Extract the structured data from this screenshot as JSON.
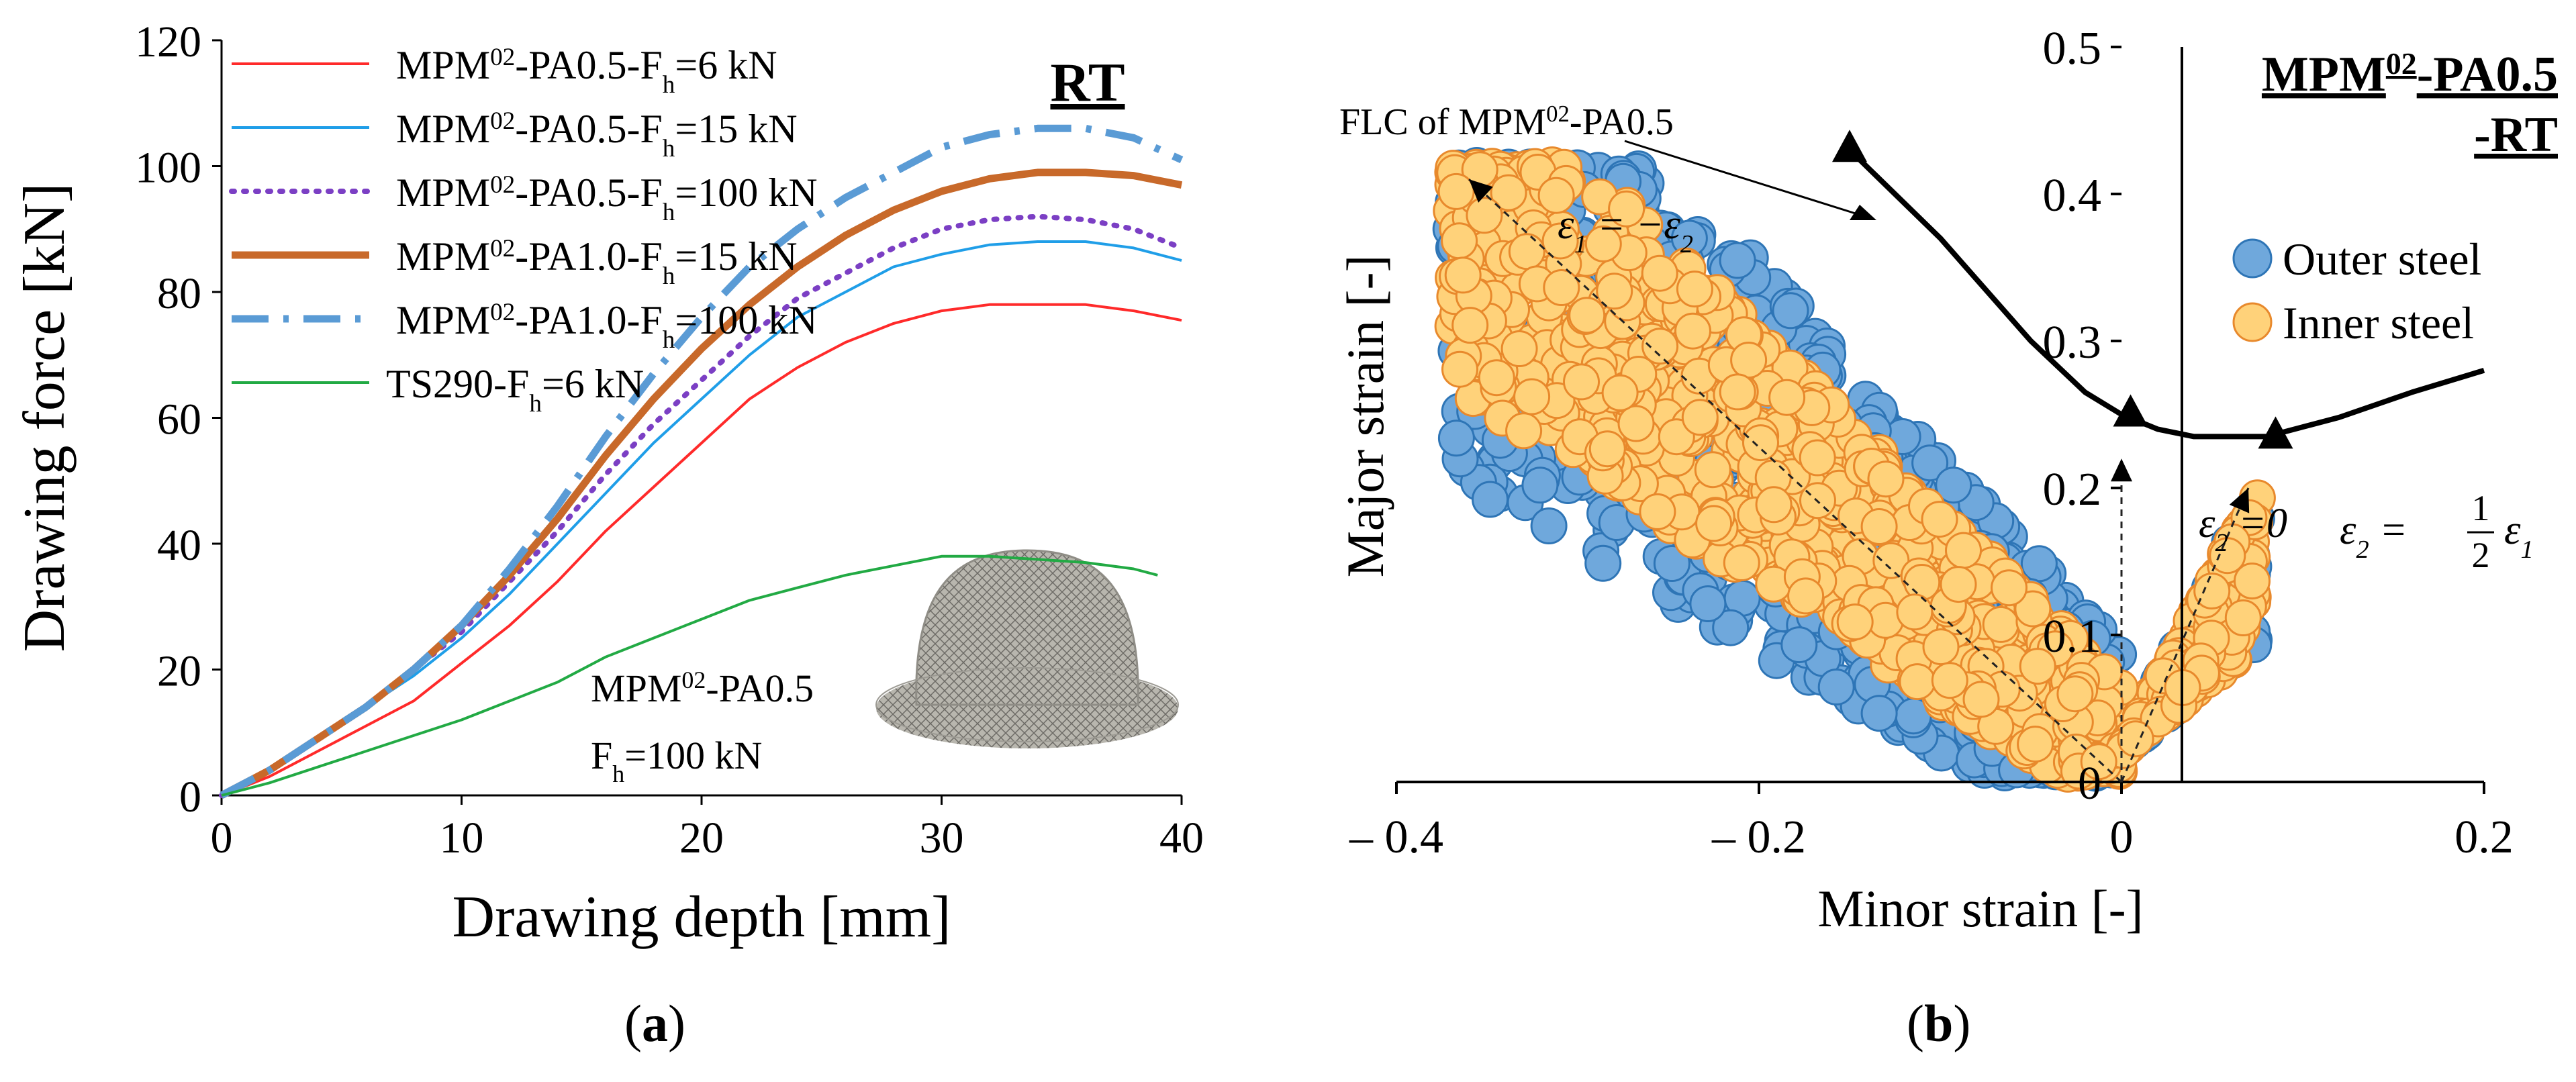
{
  "captions": {
    "a": "a",
    "b": "b"
  },
  "chart_data": [
    {
      "type": "line",
      "panel": "a",
      "title": "RT",
      "xlabel": "Drawing depth [mm]",
      "ylabel": "Drawing force [kN]",
      "xlim": [
        0,
        40
      ],
      "ylim": [
        0,
        120
      ],
      "xticks": [
        0,
        10,
        20,
        30,
        40
      ],
      "yticks": [
        0,
        20,
        40,
        60,
        80,
        100,
        120
      ],
      "legend_position": "top-left",
      "series": [
        {
          "name": "MPM02-PA0.5-Fh=6 kN",
          "label_parts": [
            "MPM",
            "02",
            "-PA0.5-F",
            "h",
            "=6 kN"
          ],
          "color": "#ff2a2a",
          "style": "solid",
          "x": [
            0,
            2,
            4,
            6,
            8,
            10,
            12,
            14,
            16,
            18,
            20,
            22,
            24,
            26,
            28,
            30,
            32,
            34,
            36,
            38,
            40
          ],
          "y": [
            0,
            3,
            7,
            11,
            15,
            21,
            27,
            34,
            42,
            49,
            56,
            63,
            68,
            72,
            75,
            77,
            78,
            78,
            78,
            77,
            75.5
          ]
        },
        {
          "name": "MPM02-PA0.5-Fh=15 kN",
          "label_parts": [
            "MPM",
            "02",
            "-PA0.5-F",
            "h",
            "=15 kN"
          ],
          "color": "#1f9ee8",
          "style": "solid",
          "x": [
            0,
            2,
            4,
            6,
            8,
            10,
            12,
            14,
            16,
            18,
            20,
            22,
            24,
            26,
            28,
            30,
            32,
            34,
            36,
            38,
            40
          ],
          "y": [
            0,
            4,
            9,
            14,
            19,
            25,
            32,
            40,
            48,
            56,
            63,
            70,
            76,
            80,
            84,
            86,
            87.5,
            88,
            88,
            87,
            85
          ]
        },
        {
          "name": "MPM02-PA0.5-Fh=100 kN",
          "label_parts": [
            "MPM",
            "02",
            "-PA0.5-F",
            "h",
            "=100 kN"
          ],
          "color": "#7b3fc4",
          "style": "dotted",
          "x": [
            0,
            2,
            4,
            6,
            8,
            10,
            12,
            14,
            16,
            18,
            20,
            22,
            24,
            26,
            28,
            30,
            32,
            34,
            36,
            38,
            40
          ],
          "y": [
            0,
            4,
            9,
            14,
            20,
            26,
            34,
            42,
            51,
            59,
            66,
            73,
            79,
            83,
            87,
            90,
            91.5,
            92,
            91.5,
            90,
            87
          ]
        },
        {
          "name": "MPM02-PA1.0-Fh=15 kN",
          "label_parts": [
            "MPM",
            "02",
            "-PA1.0-F",
            "h",
            "=15 kN"
          ],
          "color": "#c8692a",
          "style": "thick",
          "x": [
            0,
            2,
            4,
            6,
            8,
            10,
            12,
            14,
            16,
            18,
            20,
            22,
            24,
            26,
            28,
            30,
            32,
            34,
            36,
            38,
            40
          ],
          "y": [
            0,
            4,
            9,
            14,
            20,
            27,
            35,
            44,
            54,
            63,
            71,
            78,
            84,
            89,
            93,
            96,
            98,
            99,
            99,
            98.5,
            97
          ]
        },
        {
          "name": "MPM02-PA1.0-Fh=100 kN",
          "label_parts": [
            "MPM",
            "02",
            "-PA1.0-F",
            "h",
            "=100 kN"
          ],
          "color": "#5a9bd5",
          "style": "dashdot",
          "x": [
            0,
            2,
            4,
            6,
            8,
            10,
            12,
            14,
            16,
            18,
            20,
            22,
            24,
            26,
            28,
            30,
            32,
            34,
            36,
            38,
            40
          ],
          "y": [
            0,
            4,
            9,
            14,
            20,
            27,
            36,
            46,
            57,
            67,
            76,
            84,
            90,
            95,
            99,
            103,
            105,
            106,
            106,
            104.5,
            101
          ]
        },
        {
          "name": "TS290-Fh=6 kN",
          "label_parts": [
            "TS290-F",
            "h",
            "=6 kN",
            ""
          ],
          "color": "#22aa44",
          "style": "solid",
          "x": [
            0,
            2,
            4,
            6,
            8,
            10,
            12,
            14,
            16,
            18,
            20,
            22,
            24,
            26,
            28,
            30,
            32,
            34,
            36,
            38,
            39
          ],
          "y": [
            0,
            2,
            4.5,
            7,
            9.5,
            12,
            15,
            18,
            22,
            25,
            28,
            31,
            33,
            35,
            36.5,
            38,
            38,
            37.5,
            37,
            36,
            35
          ]
        }
      ],
      "inset": {
        "label_line1_parts": [
          "MPM",
          "02",
          "-PA0.5"
        ],
        "label_line2_parts": [
          "F",
          "h",
          "=100 kN"
        ]
      }
    },
    {
      "type": "scatter",
      "panel": "b",
      "title": "MPM02-PA0.5-RT",
      "title_parts": {
        "line1": [
          "MPM",
          "02",
          "-PA0.5"
        ],
        "line2": "-RT"
      },
      "xlabel": "Minor strain [-]",
      "ylabel": "Major strain [-]",
      "xlim": [
        -0.4,
        0.2
      ],
      "ylim": [
        0,
        0.5
      ],
      "xticks": [
        -0.4,
        -0.2,
        0,
        0.2
      ],
      "xtick_labels": [
        "– 0.4",
        "– 0.2",
        "0",
        "0.2"
      ],
      "yticks": [
        0,
        0.1,
        0.2,
        0.3,
        0.4,
        0.5
      ],
      "ytick_labels": [
        "0",
        "0.1",
        "0.2",
        "0.3",
        "0.4",
        "0.5"
      ],
      "legend_position": "top-right",
      "series": [
        {
          "name": "Outer steel",
          "color": "#6fa8dc",
          "edge": "#2e75b6"
        },
        {
          "name": "Inner steel",
          "color": "#ffd27a",
          "edge": "#e8892c"
        }
      ],
      "flc": {
        "label_parts": [
          "FLC of MPM",
          "02",
          "-PA0.5"
        ],
        "x": [
          -0.15,
          -0.1,
          -0.05,
          -0.02,
          0,
          0.02,
          0.04,
          0.08,
          0.12,
          0.16,
          0.2
        ],
        "y": [
          0.43,
          0.37,
          0.3,
          0.265,
          0.25,
          0.24,
          0.235,
          0.235,
          0.248,
          0.265,
          0.28
        ],
        "markers": [
          [
            -0.15,
            0.43
          ],
          [
            0.005,
            0.25
          ],
          [
            0.085,
            0.235
          ]
        ]
      },
      "strain_paths": [
        {
          "label": "ε1 = −ε2",
          "from": [
            0,
            0
          ],
          "to": [
            -0.36,
            0.41
          ]
        },
        {
          "label": "ε2 = 0",
          "from": [
            0,
            0
          ],
          "to": [
            0,
            0.22
          ]
        },
        {
          "label": "ε2 = ½ ε1",
          "from": [
            0,
            0
          ],
          "to": [
            0.07,
            0.2
          ]
        }
      ],
      "annotations": {
        "eps_uniaxial": {
          "parts": [
            "ε",
            "1",
            " = −ε",
            "2"
          ]
        },
        "eps_plane": {
          "parts": [
            "ε",
            "2",
            " =0"
          ]
        },
        "eps_biax": {
          "parts": [
            "ε",
            "2",
            " = ",
            "ε",
            "1"
          ],
          "frac_num": "1",
          "frac_den": "2"
        }
      }
    }
  ]
}
